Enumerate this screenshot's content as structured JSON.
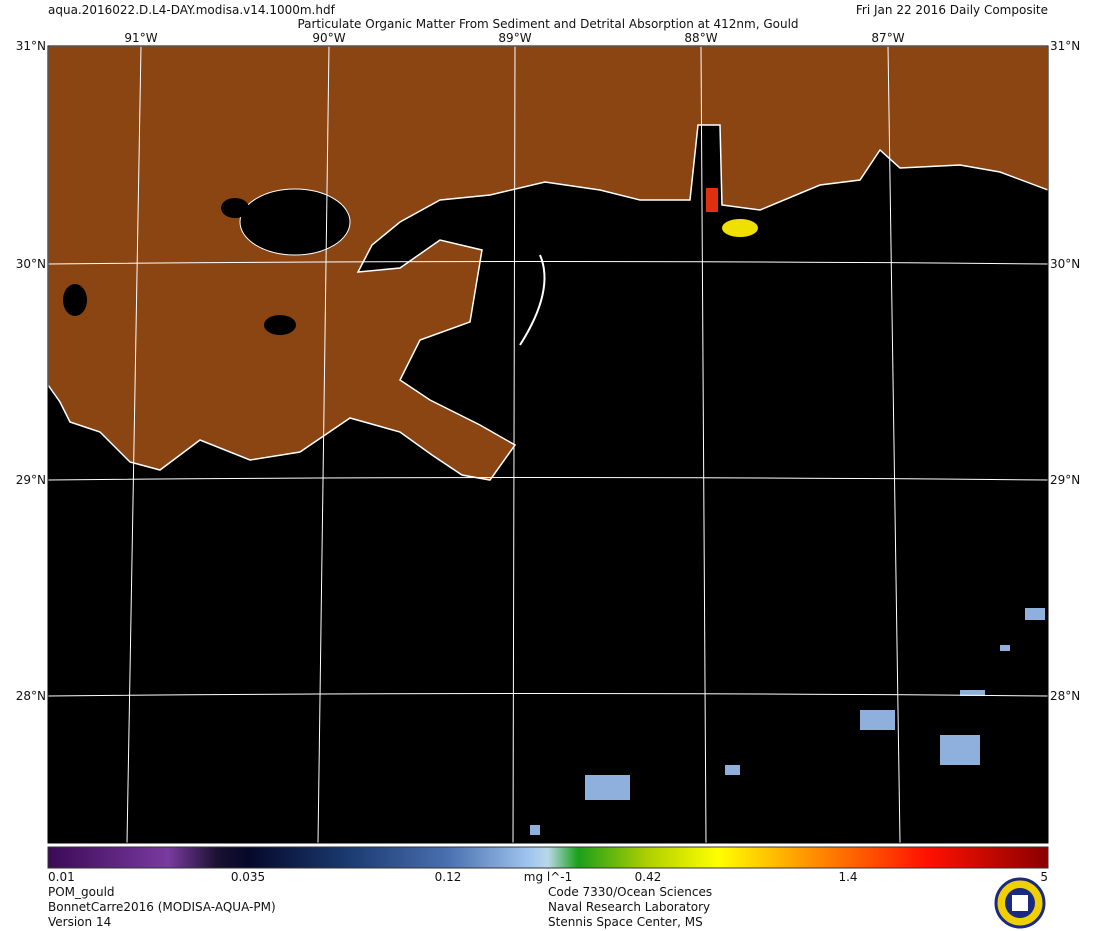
{
  "header": {
    "file": "aqua.2016022.D.L4-DAY.modisa.v14.1000m.hdf",
    "title": "Particulate Organic Matter From Sediment and Detrital Absorption at 412nm, Gould",
    "date": "Fri Jan 22 2016 Daily Composite"
  },
  "grid": {
    "lon_labels": [
      "91°W",
      "90°W",
      "89°W",
      "88°W",
      "87°W"
    ],
    "lat_labels": [
      "31°N",
      "30°N",
      "29°N",
      "28°N"
    ]
  },
  "colorbar": {
    "ticks": [
      "0.01",
      "0.035",
      "0.12",
      "0.42",
      "1.4",
      "5"
    ],
    "units": "mg l^-1"
  },
  "footer": {
    "left": [
      "POM_gould",
      "BonnetCarre2016 (MODISA-AQUA-PM)",
      "Version 14"
    ],
    "right": [
      "Code 7330/Ocean Sciences",
      "Naval Research Laboratory",
      "Stennis Space Center, MS"
    ]
  }
}
